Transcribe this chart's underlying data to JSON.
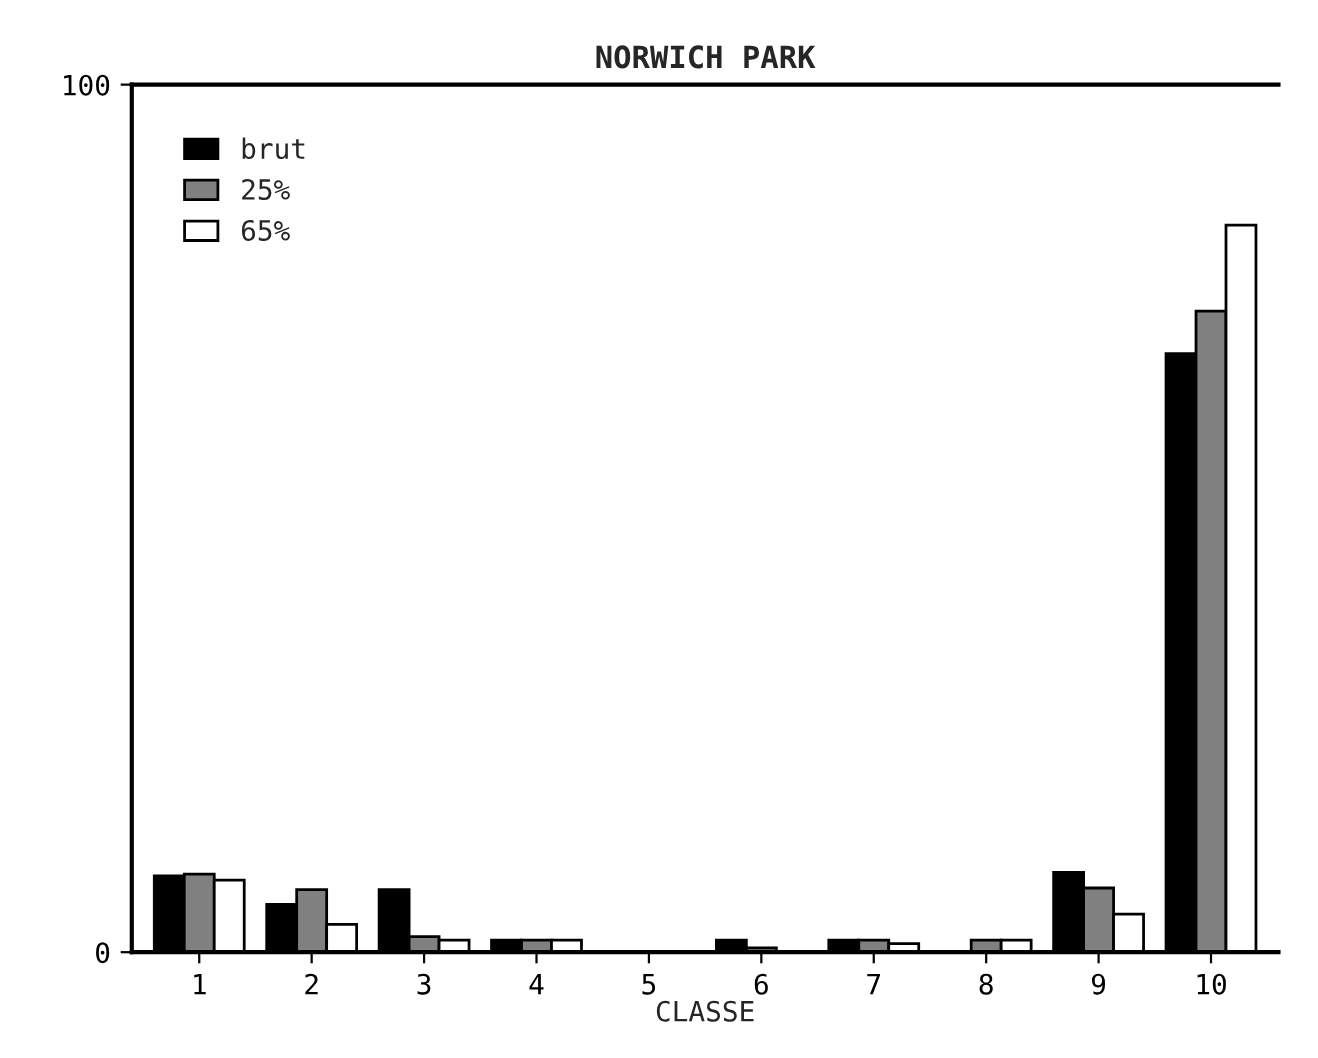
{
  "chart_data": {
    "type": "bar",
    "title": "NORWICH PARK",
    "xlabel": "CLASSE",
    "categories": [
      "1",
      "2",
      "3",
      "4",
      "5",
      "6",
      "7",
      "8",
      "9",
      "10"
    ],
    "series": [
      {
        "name": "brut",
        "color": "#000000",
        "values": [
          8.8,
          5.5,
          7.2,
          1.4,
          0,
          1.4,
          1.4,
          0,
          9.2,
          69
        ]
      },
      {
        "name": "25%",
        "color": "#808080",
        "values": [
          9.0,
          7.2,
          1.8,
          1.4,
          0,
          0.5,
          1.4,
          1.4,
          7.4,
          73.9
        ]
      },
      {
        "name": "65%",
        "color": "#ffffff",
        "values": [
          8.3,
          3.2,
          1.4,
          1.4,
          0,
          0,
          1.0,
          1.4,
          4.4,
          83.8
        ]
      }
    ],
    "ylim": [
      0,
      100
    ],
    "yticks": [
      0,
      100
    ],
    "grid": false,
    "legend": "top left"
  }
}
